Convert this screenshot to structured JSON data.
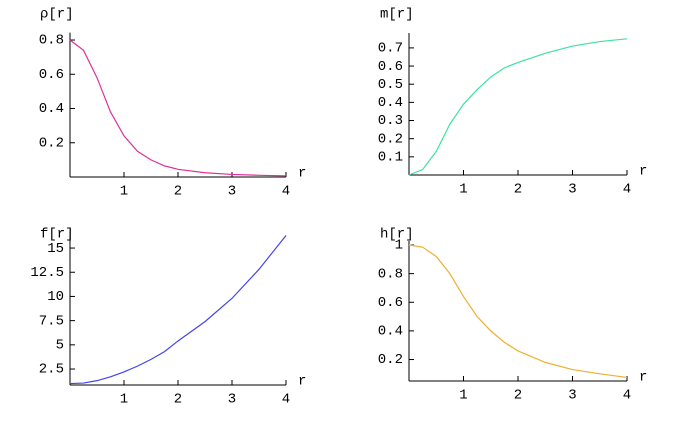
{
  "chart_data": [
    {
      "type": "line",
      "ylabel": "ρ[r]",
      "xlabel": "r",
      "xlim": [
        0,
        4
      ],
      "ylim": [
        0,
        0.82
      ],
      "xticks": [
        1,
        2,
        3,
        4
      ],
      "yticks": [
        0.2,
        0.4,
        0.6,
        0.8
      ],
      "x": [
        0,
        0.25,
        0.5,
        0.75,
        1,
        1.25,
        1.5,
        1.75,
        2,
        2.5,
        3,
        3.5,
        4
      ],
      "series": [
        {
          "color": "#e0309a",
          "values": [
            0.8,
            0.74,
            0.58,
            0.38,
            0.24,
            0.15,
            0.1,
            0.065,
            0.045,
            0.025,
            0.015,
            0.01,
            0.007
          ]
        }
      ]
    },
    {
      "type": "line",
      "ylabel": "m[r]",
      "xlabel": "r",
      "xlim": [
        0,
        4
      ],
      "ylim": [
        0,
        0.76
      ],
      "xticks": [
        1,
        2,
        3,
        4
      ],
      "yticks": [
        0.1,
        0.2,
        0.3,
        0.4,
        0.5,
        0.6,
        0.7
      ],
      "x": [
        0,
        0.25,
        0.5,
        0.75,
        1,
        1.25,
        1.5,
        1.75,
        2,
        2.5,
        3,
        3.5,
        4
      ],
      "series": [
        {
          "color": "#3ce3a0",
          "values": [
            0,
            0.03,
            0.13,
            0.28,
            0.39,
            0.47,
            0.54,
            0.59,
            0.62,
            0.67,
            0.71,
            0.735,
            0.75
          ]
        }
      ]
    },
    {
      "type": "line",
      "ylabel": "f[r]",
      "xlabel": "r",
      "xlim": [
        0,
        4
      ],
      "ylim": [
        0.85,
        16.4
      ],
      "xticks": [
        1,
        2,
        3,
        4
      ],
      "yticks": [
        2.5,
        5,
        7.5,
        10,
        12.5,
        15
      ],
      "x": [
        0,
        0.25,
        0.5,
        0.75,
        1,
        1.25,
        1.5,
        1.75,
        2,
        2.5,
        3,
        3.5,
        4
      ],
      "series": [
        {
          "color": "#4444ee",
          "values": [
            1.0,
            1.05,
            1.3,
            1.7,
            2.2,
            2.8,
            3.5,
            4.3,
            5.4,
            7.4,
            9.8,
            12.8,
            16.3
          ]
        }
      ]
    },
    {
      "type": "line",
      "ylabel": "h[r]",
      "xlabel": "r",
      "xlim": [
        0,
        4
      ],
      "ylim": [
        0.05,
        1
      ],
      "xticks": [
        1,
        2,
        3,
        4
      ],
      "yticks": [
        0.2,
        0.4,
        0.6,
        0.8,
        1
      ],
      "x": [
        0,
        0.25,
        0.5,
        0.75,
        1,
        1.25,
        1.5,
        1.75,
        2,
        2.5,
        3,
        3.5,
        4
      ],
      "series": [
        {
          "color": "#f0b030",
          "values": [
            1,
            0.985,
            0.92,
            0.8,
            0.64,
            0.5,
            0.4,
            0.32,
            0.26,
            0.18,
            0.13,
            0.1,
            0.075
          ]
        }
      ]
    }
  ]
}
